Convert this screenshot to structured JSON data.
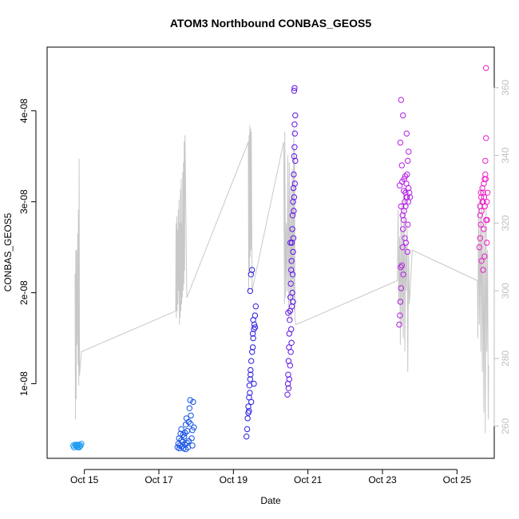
{
  "chart_data": {
    "type": "scatter",
    "title": "ATOM3 Northbound CONBAS_GEOS5",
    "xlabel": "Date",
    "ylabel": "CONBAS_GEOS5",
    "x_tick_labels": [
      "Oct 15",
      "Oct 17",
      "Oct 19",
      "Oct 21",
      "Oct 23",
      "Oct 25"
    ],
    "x_ticks_days": [
      15,
      17,
      19,
      21,
      23,
      25
    ],
    "xlim_days": [
      14.0,
      26.0
    ],
    "y_tick_labels": [
      "1e-08",
      "2e-08",
      "3e-08",
      "4e-08"
    ],
    "y_ticks": [
      1e-08,
      2e-08,
      3e-08,
      4e-08
    ],
    "ylim": [
      1.8e-09,
      4.7e-08
    ],
    "y2_tick_labels": [
      "260",
      "280",
      "300",
      "320",
      "340",
      "360"
    ],
    "y2_ticks": [
      260,
      280,
      300,
      320,
      340,
      360
    ],
    "y2lim": [
      250.5,
      372
    ],
    "y2_color": "#bfbfbf",
    "marker": "open-circle",
    "series": [
      {
        "color": "#1e9bf0",
        "points": [
          [
            14.7,
            3.2e-09
          ],
          [
            14.72,
            3e-09
          ],
          [
            14.75,
            3.3e-09
          ],
          [
            14.78,
            3.1e-09
          ],
          [
            14.8,
            3.2e-09
          ],
          [
            14.82,
            3e-09
          ],
          [
            14.85,
            3.3e-09
          ],
          [
            14.88,
            3.1e-09
          ],
          [
            14.9,
            3.2e-09
          ],
          [
            14.92,
            3.4e-09
          ],
          [
            14.78,
            3.3e-09
          ],
          [
            14.86,
            3e-09
          ]
        ]
      },
      {
        "color": "#1250e6",
        "points": [
          [
            17.5,
            3e-09
          ],
          [
            17.52,
            3.4e-09
          ],
          [
            17.54,
            4e-09
          ],
          [
            17.56,
            3.2e-09
          ],
          [
            17.58,
            4.5e-09
          ],
          [
            17.6,
            5e-09
          ],
          [
            17.62,
            3.1e-09
          ],
          [
            17.64,
            3.6e-09
          ],
          [
            17.66,
            2.9e-09
          ],
          [
            17.68,
            4.2e-09
          ],
          [
            17.7,
            3.3e-09
          ],
          [
            17.72,
            5.5e-09
          ],
          [
            17.74,
            6.2e-09
          ],
          [
            17.76,
            4.8e-09
          ],
          [
            17.78,
            3e-09
          ],
          [
            17.8,
            5.8e-09
          ],
          [
            17.82,
            7.3e-09
          ],
          [
            17.84,
            8.2e-09
          ],
          [
            17.86,
            6.5e-09
          ],
          [
            17.88,
            4e-09
          ],
          [
            17.9,
            3.2e-09
          ],
          [
            17.92,
            8e-09
          ],
          [
            17.94,
            5.2e-09
          ],
          [
            17.6,
            3.8e-09
          ],
          [
            17.7,
            4.6e-09
          ],
          [
            17.75,
            3.5e-09
          ],
          [
            17.85,
            5.6e-09
          ],
          [
            17.55,
            2.9e-09
          ],
          [
            17.65,
            4.4e-09
          ],
          [
            17.9,
            4.9e-09
          ],
          [
            17.8,
            3.7e-09
          ],
          [
            17.72,
            2.8e-09
          ]
        ]
      },
      {
        "color": "#2a1ee0",
        "points": [
          [
            19.35,
            4.2e-09
          ],
          [
            19.37,
            5e-09
          ],
          [
            19.38,
            6.2e-09
          ],
          [
            19.4,
            7.5e-09
          ],
          [
            19.42,
            8.5e-09
          ],
          [
            19.43,
            9.8e-09
          ],
          [
            19.45,
            1.05e-08
          ],
          [
            19.46,
            1.15e-08
          ],
          [
            19.48,
            1.25e-08
          ],
          [
            19.5,
            1.35e-08
          ],
          [
            19.52,
            1.4e-08
          ],
          [
            19.53,
            1.5e-08
          ],
          [
            19.55,
            1.6e-08
          ],
          [
            19.56,
            1.65e-08
          ],
          [
            19.58,
            1.75e-08
          ],
          [
            19.6,
            1.85e-08
          ],
          [
            19.45,
            2.02e-08
          ],
          [
            19.47,
            2.2e-08
          ],
          [
            19.5,
            2.25e-08
          ],
          [
            19.42,
            7e-09
          ],
          [
            19.44,
            9e-09
          ],
          [
            19.46,
            1.1e-08
          ],
          [
            19.52,
            1.55e-08
          ],
          [
            19.55,
            1e-08
          ],
          [
            19.58,
            1.62e-08
          ],
          [
            19.4,
            6.8e-09
          ],
          [
            19.48,
            8e-09
          ],
          [
            19.53,
            1.7e-08
          ]
        ]
      },
      {
        "color": "#6014e8",
        "points": [
          [
            20.45,
            8.8e-09
          ],
          [
            20.46,
            1e-08
          ],
          [
            20.47,
            1.1e-08
          ],
          [
            20.48,
            1.25e-08
          ],
          [
            20.49,
            1.4e-08
          ],
          [
            20.5,
            1.55e-08
          ],
          [
            20.51,
            1.7e-08
          ],
          [
            20.52,
            1.8e-08
          ],
          [
            20.53,
            1.95e-08
          ],
          [
            20.54,
            2.1e-08
          ],
          [
            20.55,
            2.25e-08
          ],
          [
            20.56,
            2.35e-08
          ],
          [
            20.57,
            2.55e-08
          ],
          [
            20.58,
            2.7e-08
          ],
          [
            20.59,
            2.85e-08
          ],
          [
            20.6,
            3e-08
          ],
          [
            20.61,
            3.15e-08
          ],
          [
            20.62,
            3.3e-08
          ],
          [
            20.63,
            3.5e-08
          ],
          [
            20.64,
            3.6e-08
          ],
          [
            20.65,
            3.75e-08
          ],
          [
            20.66,
            3.95e-08
          ],
          [
            20.63,
            4.22e-08
          ],
          [
            20.64,
            4.25e-08
          ],
          [
            20.48,
            9.5e-09
          ],
          [
            20.52,
            1.2e-08
          ],
          [
            20.55,
            1.6e-08
          ],
          [
            20.58,
            2e-08
          ],
          [
            20.6,
            2.45e-08
          ],
          [
            20.62,
            2.9e-08
          ],
          [
            20.65,
            3.2e-08
          ],
          [
            20.54,
            1.35e-08
          ],
          [
            20.57,
            1.85e-08
          ],
          [
            20.59,
            2.2e-08
          ],
          [
            20.61,
            2.6e-08
          ],
          [
            20.5,
            1.05e-08
          ],
          [
            20.56,
            1.45e-08
          ],
          [
            20.63,
            3.05e-08
          ],
          [
            20.66,
            3.45e-08
          ],
          [
            20.64,
            3.85e-08
          ],
          [
            20.53,
            2.55e-08
          ],
          [
            20.6,
            1.9e-08
          ],
          [
            20.47,
            1.78e-08
          ]
        ]
      },
      {
        "color": "#b41ee6",
        "points": [
          [
            23.45,
            1.65e-08
          ],
          [
            23.47,
            1.75e-08
          ],
          [
            23.48,
            1.9e-08
          ],
          [
            23.5,
            2.05e-08
          ],
          [
            23.52,
            2.3e-08
          ],
          [
            23.54,
            2.5e-08
          ],
          [
            23.55,
            2.7e-08
          ],
          [
            23.57,
            2.8e-08
          ],
          [
            23.58,
            2.9e-08
          ],
          [
            23.6,
            3e-08
          ],
          [
            23.62,
            3.1e-08
          ],
          [
            23.64,
            3.2e-08
          ],
          [
            23.66,
            3.3e-08
          ],
          [
            23.68,
            3.45e-08
          ],
          [
            23.7,
            3.55e-08
          ],
          [
            23.5,
            4.12e-08
          ],
          [
            23.55,
            3.95e-08
          ],
          [
            23.65,
            3.75e-08
          ],
          [
            23.48,
            3.65e-08
          ],
          [
            23.52,
            3.4e-08
          ],
          [
            23.58,
            3.25e-08
          ],
          [
            23.62,
            2.95e-08
          ],
          [
            23.66,
            3.05e-08
          ],
          [
            23.7,
            3.15e-08
          ],
          [
            23.6,
            2.6e-08
          ],
          [
            23.56,
            2.2e-08
          ],
          [
            23.54,
            2.85e-08
          ],
          [
            23.64,
            3.05e-08
          ],
          [
            23.68,
            2.75e-08
          ],
          [
            23.72,
            3.1e-08
          ],
          [
            23.5,
            2.95e-08
          ],
          [
            23.46,
            3.18e-08
          ],
          [
            23.53,
            3.22e-08
          ],
          [
            23.67,
            2.45e-08
          ],
          [
            23.63,
            2.55e-08
          ],
          [
            23.74,
            3.05e-08
          ],
          [
            23.57,
            3.12e-08
          ],
          [
            23.61,
            3.28e-08
          ],
          [
            23.69,
            3e-08
          ],
          [
            23.49,
            2.28e-08
          ]
        ]
      },
      {
        "color": "#f01ec8",
        "points": [
          [
            25.6,
            2.5e-08
          ],
          [
            25.62,
            2.6e-08
          ],
          [
            25.64,
            2.75e-08
          ],
          [
            25.66,
            2.9e-08
          ],
          [
            25.68,
            3e-08
          ],
          [
            25.7,
            3.1e-08
          ],
          [
            25.72,
            3.2e-08
          ],
          [
            25.74,
            3.25e-08
          ],
          [
            25.76,
            3.3e-08
          ],
          [
            25.78,
            2.8e-08
          ],
          [
            25.8,
            3e-08
          ],
          [
            25.82,
            3.1e-08
          ],
          [
            25.76,
            3.45e-08
          ],
          [
            25.78,
            3.7e-08
          ],
          [
            25.78,
            4.47e-08
          ],
          [
            25.62,
            2.95e-08
          ],
          [
            25.65,
            3.05e-08
          ],
          [
            25.68,
            3.15e-08
          ],
          [
            25.72,
            2.7e-08
          ],
          [
            25.74,
            2.4e-08
          ],
          [
            25.8,
            2.55e-08
          ],
          [
            25.7,
            2.25e-08
          ],
          [
            25.66,
            2.35e-08
          ],
          [
            25.64,
            3.1e-08
          ],
          [
            25.75,
            2.95e-08
          ],
          [
            25.7,
            3e-08
          ],
          [
            25.77,
            3.25e-08
          ],
          [
            25.62,
            2.85e-08
          ],
          [
            25.81,
            2.8e-08
          ],
          [
            25.73,
            3.05e-08
          ]
        ]
      }
    ],
    "background_series": {
      "color": "#c8c8c8",
      "axis": "right",
      "points": [
        [
          14.75,
          305
        ],
        [
          14.76,
          262
        ],
        [
          14.77,
          312
        ],
        [
          14.78,
          268
        ],
        [
          14.79,
          312
        ],
        [
          14.8,
          284
        ],
        [
          14.81,
          290
        ],
        [
          14.82,
          317
        ],
        [
          14.83,
          278
        ],
        [
          14.84,
          324
        ],
        [
          14.85,
          272
        ],
        [
          14.86,
          339
        ],
        [
          14.87,
          275
        ],
        [
          14.92,
          282
        ],
        [
          17.45,
          294
        ],
        [
          17.46,
          320
        ],
        [
          17.47,
          292
        ],
        [
          17.48,
          322
        ],
        [
          17.49,
          294
        ],
        [
          17.5,
          318
        ],
        [
          17.51,
          296
        ],
        [
          17.52,
          324
        ],
        [
          17.53,
          300
        ],
        [
          17.54,
          327
        ],
        [
          17.55,
          290
        ],
        [
          17.56,
          320
        ],
        [
          17.57,
          292
        ],
        [
          17.58,
          330
        ],
        [
          17.59,
          294
        ],
        [
          17.6,
          333
        ],
        [
          17.61,
          296
        ],
        [
          17.62,
          320
        ],
        [
          17.63,
          298
        ],
        [
          17.64,
          335
        ],
        [
          17.65,
          300
        ],
        [
          17.66,
          338
        ],
        [
          17.67,
          302
        ],
        [
          17.68,
          344
        ],
        [
          17.69,
          306
        ],
        [
          17.7,
          346
        ],
        [
          17.75,
          298
        ],
        [
          19.4,
          344
        ],
        [
          19.41,
          300
        ],
        [
          19.42,
          346
        ],
        [
          19.43,
          306
        ],
        [
          19.44,
          349
        ],
        [
          19.45,
          310
        ],
        [
          19.46,
          348
        ],
        [
          19.47,
          312
        ],
        [
          19.48,
          347
        ],
        [
          19.5,
          300
        ],
        [
          20.35,
          344
        ],
        [
          20.37,
          296
        ],
        [
          20.38,
          347
        ],
        [
          20.4,
          298
        ],
        [
          20.42,
          320
        ],
        [
          20.44,
          300
        ],
        [
          20.46,
          340
        ],
        [
          20.48,
          292
        ],
        [
          20.5,
          338
        ],
        [
          20.52,
          296
        ],
        [
          20.54,
          330
        ],
        [
          20.56,
          292
        ],
        [
          20.58,
          336
        ],
        [
          20.6,
          298
        ],
        [
          20.62,
          348
        ],
        [
          20.63,
          294
        ],
        [
          20.64,
          342
        ],
        [
          20.65,
          292
        ],
        [
          20.68,
          290
        ],
        [
          23.4,
          303
        ],
        [
          23.42,
          324
        ],
        [
          23.44,
          296
        ],
        [
          23.46,
          316
        ],
        [
          23.48,
          284
        ],
        [
          23.5,
          326
        ],
        [
          23.52,
          290
        ],
        [
          23.54,
          318
        ],
        [
          23.56,
          286
        ],
        [
          23.58,
          330
        ],
        [
          23.6,
          282
        ],
        [
          23.62,
          314
        ],
        [
          23.64,
          300
        ],
        [
          23.66,
          320
        ],
        [
          23.68,
          276
        ],
        [
          23.7,
          312
        ],
        [
          23.72,
          296
        ],
        [
          23.8,
          312
        ],
        [
          25.55,
          303
        ],
        [
          25.56,
          286
        ],
        [
          25.58,
          326
        ],
        [
          25.6,
          290
        ],
        [
          25.62,
          322
        ],
        [
          25.64,
          282
        ],
        [
          25.66,
          332
        ],
        [
          25.68,
          276
        ],
        [
          25.7,
          318
        ],
        [
          25.72,
          264
        ],
        [
          25.74,
          320
        ],
        [
          25.76,
          258
        ],
        [
          25.78,
          326
        ],
        [
          25.8,
          282
        ],
        [
          25.82,
          312
        ],
        [
          25.84,
          262
        ],
        [
          25.85,
          278
        ]
      ]
    }
  }
}
